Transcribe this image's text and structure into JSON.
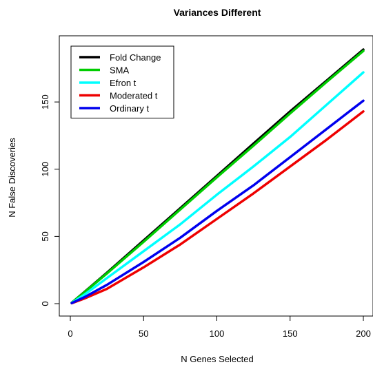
{
  "chart_data": {
    "type": "line",
    "title": "Variances Different",
    "xlabel": "N Genes Selected",
    "ylabel": "N False Discoveries",
    "xlim": [
      0,
      200
    ],
    "ylim": [
      0,
      190
    ],
    "xticks": [
      0,
      50,
      100,
      150,
      200
    ],
    "yticks": [
      0,
      50,
      100,
      150
    ],
    "grid": false,
    "legend_position": "top-left",
    "x": [
      1,
      10,
      25,
      50,
      75,
      100,
      125,
      150,
      175,
      200
    ],
    "series": [
      {
        "name": "Fold Change",
        "color": "#000000",
        "values": [
          0.7,
          9,
          23,
          47,
          71,
          95,
          119,
          143,
          166,
          189
        ]
      },
      {
        "name": "SMA",
        "color": "#00cd00",
        "values": [
          0.7,
          8.8,
          22.5,
          46,
          70,
          94,
          117.5,
          141.5,
          165,
          188
        ]
      },
      {
        "name": "Efron t",
        "color": "#00ffff",
        "values": [
          0.5,
          7,
          19,
          39,
          59,
          81,
          102,
          124,
          148,
          172
        ]
      },
      {
        "name": "Moderated t",
        "color": "#ee0000",
        "values": [
          0.3,
          4,
          11,
          27,
          44,
          63,
          82,
          102,
          122,
          143
        ]
      },
      {
        "name": "Ordinary t",
        "color": "#0000ee",
        "values": [
          0.4,
          5,
          14,
          31,
          49,
          69,
          88,
          109,
          130,
          151
        ]
      }
    ]
  }
}
